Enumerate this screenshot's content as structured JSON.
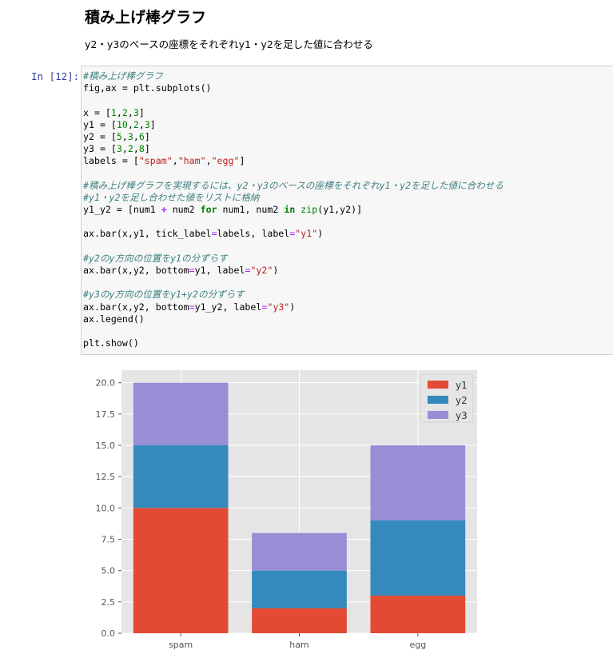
{
  "markdown": {
    "heading": "積み上げ棒グラフ",
    "description": "y2・y3のベースの座標をそれぞれy1・y2を足した値に合わせる"
  },
  "cell": {
    "prompt": "In [12]:",
    "lines": [
      [
        [
          "cm",
          "#積み上げ棒グラフ"
        ]
      ],
      [
        [
          "",
          "fig,ax = plt.subplots()"
        ]
      ],
      [],
      [
        [
          "",
          "x = ["
        ],
        [
          "num",
          "1"
        ],
        [
          "",
          ","
        ],
        [
          "num",
          "2"
        ],
        [
          "",
          ","
        ],
        [
          "num",
          "3"
        ],
        [
          "",
          "]"
        ]
      ],
      [
        [
          "",
          "y1 = ["
        ],
        [
          "num",
          "10"
        ],
        [
          "",
          ","
        ],
        [
          "num",
          "2"
        ],
        [
          "",
          ","
        ],
        [
          "num",
          "3"
        ],
        [
          "",
          "]"
        ]
      ],
      [
        [
          "",
          "y2 = ["
        ],
        [
          "num",
          "5"
        ],
        [
          "",
          ","
        ],
        [
          "num",
          "3"
        ],
        [
          "",
          ","
        ],
        [
          "num",
          "6"
        ],
        [
          "",
          "]"
        ]
      ],
      [
        [
          "",
          "y3 = ["
        ],
        [
          "num",
          "3"
        ],
        [
          "",
          ","
        ],
        [
          "num",
          "2"
        ],
        [
          "",
          ","
        ],
        [
          "num",
          "8"
        ],
        [
          "",
          "]"
        ]
      ],
      [
        [
          "",
          "labels = ["
        ],
        [
          "str",
          "\"spam\""
        ],
        [
          "",
          ","
        ],
        [
          "str",
          "\"ham\""
        ],
        [
          "",
          ","
        ],
        [
          "str",
          "\"egg\""
        ],
        [
          "",
          "]"
        ]
      ],
      [],
      [
        [
          "cm",
          "#積み上げ棒グラフを実現するには、y2・y3のベースの座標をそれぞれy1・y2を足した値に合わせる"
        ]
      ],
      [
        [
          "cm",
          "#y1・y2を足し合わせた値をリストに格納"
        ]
      ],
      [
        [
          "",
          "y1_y2 = [num1 "
        ],
        [
          "op",
          "+"
        ],
        [
          "",
          " num2 "
        ],
        [
          "kw",
          "for"
        ],
        [
          "",
          " num1, num2 "
        ],
        [
          "kw",
          "in"
        ],
        [
          "",
          " "
        ],
        [
          "bi",
          "zip"
        ],
        [
          "",
          "(y1,y2)]"
        ]
      ],
      [],
      [
        [
          "",
          "ax.bar(x,y1, tick_label"
        ],
        [
          "kv",
          "="
        ],
        [
          "",
          "labels, label"
        ],
        [
          "kv",
          "="
        ],
        [
          "str",
          "\"y1\""
        ],
        [
          "",
          ")"
        ]
      ],
      [],
      [
        [
          "cm",
          "#y2のy方向の位置をy1の分ずらす"
        ]
      ],
      [
        [
          "",
          "ax.bar(x,y2, bottom"
        ],
        [
          "kv",
          "="
        ],
        [
          "",
          "y1, label"
        ],
        [
          "kv",
          "="
        ],
        [
          "str",
          "\"y2\""
        ],
        [
          "",
          ")"
        ]
      ],
      [],
      [
        [
          "cm",
          "#y3のy方向の位置をy1+y2の分ずらす"
        ]
      ],
      [
        [
          "",
          "ax.bar(x,y2, bottom"
        ],
        [
          "kv",
          "="
        ],
        [
          "",
          "y1_y2, label"
        ],
        [
          "kv",
          "="
        ],
        [
          "str",
          "\"y3\""
        ],
        [
          "",
          ")"
        ]
      ],
      [
        [
          "",
          "ax.legend()"
        ]
      ],
      [],
      [
        [
          "",
          "plt.show()"
        ]
      ]
    ]
  },
  "chart_data": {
    "type": "bar",
    "stacked": true,
    "categories": [
      "spam",
      "ham",
      "egg"
    ],
    "series": [
      {
        "name": "y1",
        "values": [
          10,
          2,
          3
        ],
        "color": "#e24a33"
      },
      {
        "name": "y2",
        "values": [
          5,
          3,
          6
        ],
        "color": "#348abd"
      },
      {
        "name": "y3",
        "values": [
          5,
          3,
          6
        ],
        "color": "#988ed5"
      }
    ],
    "ylim": [
      0,
      21
    ],
    "yticks": [
      "0.0",
      "2.5",
      "5.0",
      "7.5",
      "10.0",
      "12.5",
      "15.0",
      "17.5",
      "20.0"
    ],
    "grid": true,
    "legend": "top-right",
    "style": "ggplot",
    "colors": {
      "axes_bg": "#e5e5e5",
      "grid": "#ffffff",
      "tick_text": "#555555"
    }
  }
}
